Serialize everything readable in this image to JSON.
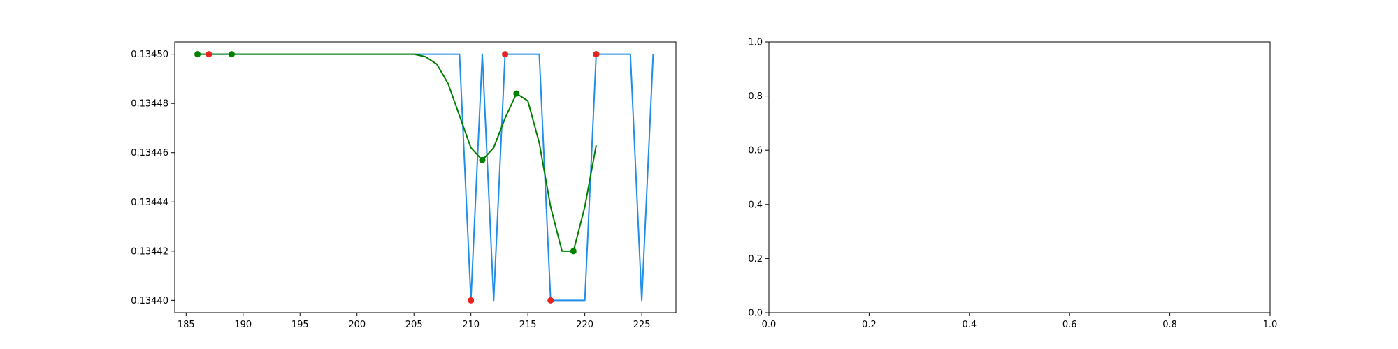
{
  "chart_data": [
    {
      "type": "line",
      "title": "",
      "xlabel": "",
      "ylabel": "",
      "xlim": [
        184.0,
        228.0
      ],
      "ylim": [
        0.134395,
        0.134505
      ],
      "xticks": [
        185,
        190,
        195,
        200,
        205,
        210,
        215,
        220,
        225
      ],
      "yticks": [
        0.1344,
        0.13442,
        0.13444,
        0.13446,
        0.13448,
        0.1345
      ],
      "ytick_format": 5,
      "grid": false,
      "legend": "none",
      "series": [
        {
          "kind": "line",
          "color": "#1e8ee8",
          "x": [
            186,
            187,
            188,
            189,
            190,
            191,
            192,
            193,
            194,
            195,
            196,
            197,
            198,
            199,
            200,
            201,
            202,
            203,
            204,
            205,
            206,
            207,
            208,
            209,
            210,
            211,
            212,
            213,
            214,
            215,
            216,
            217,
            218,
            219,
            220,
            221,
            222,
            223,
            224,
            225,
            226
          ],
          "y": [
            0.1345,
            0.1345,
            0.1345,
            0.1345,
            0.1345,
            0.1345,
            0.1345,
            0.1345,
            0.1345,
            0.1345,
            0.1345,
            0.1345,
            0.1345,
            0.1345,
            0.1345,
            0.1345,
            0.1345,
            0.1345,
            0.1345,
            0.1345,
            0.1345,
            0.1345,
            0.1345,
            0.1345,
            0.1344,
            0.1345,
            0.1344,
            0.1345,
            0.1345,
            0.1345,
            0.1345,
            0.1344,
            0.1344,
            0.1344,
            0.1344,
            0.1345,
            0.1345,
            0.1345,
            0.1345,
            0.1344,
            0.1345
          ]
        },
        {
          "kind": "line",
          "color": "#008000",
          "x": [
            186,
            187,
            188,
            189,
            190,
            191,
            192,
            193,
            194,
            195,
            196,
            197,
            198,
            199,
            200,
            201,
            202,
            203,
            204,
            205,
            206,
            207,
            208,
            209,
            210,
            211,
            212,
            213,
            214,
            215,
            216,
            217,
            218,
            219,
            220,
            221
          ],
          "y": [
            0.1345,
            0.1345,
            0.1345,
            0.1345,
            0.1345,
            0.1345,
            0.1345,
            0.1345,
            0.1345,
            0.1345,
            0.1345,
            0.1345,
            0.1345,
            0.1345,
            0.1345,
            0.1345,
            0.1345,
            0.1345,
            0.1345,
            0.1345,
            0.134499,
            0.134496,
            0.134488,
            0.134475,
            0.134462,
            0.134457,
            0.134462,
            0.134474,
            0.134484,
            0.134481,
            0.134464,
            0.134438,
            0.13442,
            0.13442,
            0.134438,
            0.134463
          ]
        },
        {
          "kind": "scatter",
          "color": "#008000",
          "x": [
            186,
            189,
            211,
            214,
            219,
            221
          ],
          "y": [
            0.1345,
            0.1345,
            0.134457,
            0.134484,
            0.13442,
            0.1345
          ]
        },
        {
          "kind": "scatter",
          "color": "#e8221e",
          "x": [
            187,
            210,
            213,
            217,
            221
          ],
          "y": [
            0.1345,
            0.1344,
            0.1345,
            0.1344,
            0.1345
          ]
        }
      ]
    },
    {
      "type": "line",
      "title": "",
      "xlabel": "",
      "ylabel": "",
      "xlim": [
        0.0,
        1.0
      ],
      "ylim": [
        0.0,
        1.0
      ],
      "xticks": [
        0.0,
        0.2,
        0.4,
        0.6,
        0.8,
        1.0
      ],
      "yticks": [
        0.0,
        0.2,
        0.4,
        0.6,
        0.8,
        1.0
      ],
      "ytick_format": 1,
      "grid": false,
      "legend": "none",
      "series": []
    }
  ]
}
